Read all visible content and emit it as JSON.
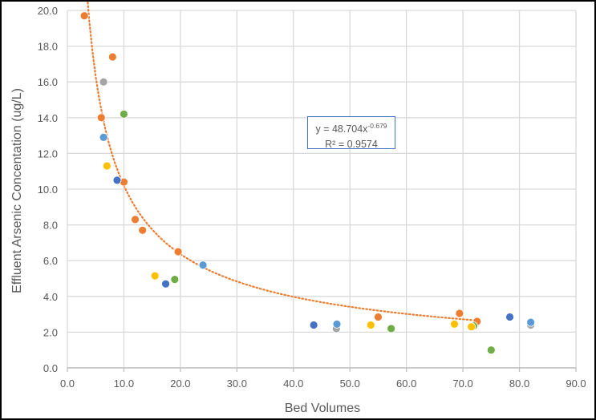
{
  "chart_data": {
    "type": "scatter",
    "title": "",
    "xlabel": "Bed Volumes",
    "ylabel": "Effluent Arsenic Concentation (ug/L)",
    "xlim": [
      0,
      90
    ],
    "ylim": [
      0,
      20
    ],
    "x_ticks": [
      "0.0",
      "10.0",
      "20.0",
      "30.0",
      "40.0",
      "50.0",
      "60.0",
      "70.0",
      "80.0",
      "90.0"
    ],
    "y_ticks": [
      "0.0",
      "2.0",
      "4.0",
      "6.0",
      "8.0",
      "10.0",
      "12.0",
      "14.0",
      "16.0",
      "18.0",
      "20.0"
    ],
    "grid": true,
    "legend": "none",
    "series": [
      {
        "color": "#ed7d31",
        "points": [
          [
            3.0,
            19.7
          ],
          [
            8.0,
            17.4
          ],
          [
            6.0,
            14.0
          ],
          [
            10.0,
            10.4
          ],
          [
            12.0,
            8.3
          ],
          [
            13.3,
            7.7
          ],
          [
            19.6,
            6.5
          ],
          [
            55.0,
            2.85
          ],
          [
            69.4,
            3.05
          ],
          [
            72.5,
            2.6
          ]
        ]
      },
      {
        "color": "#a5a5a5",
        "points": [
          [
            6.4,
            16.0
          ],
          [
            47.6,
            2.2
          ],
          [
            82.0,
            2.4
          ]
        ]
      },
      {
        "color": "#70ad47",
        "points": [
          [
            10.0,
            14.2
          ],
          [
            19.0,
            4.95
          ],
          [
            57.3,
            2.2
          ],
          [
            75.0,
            1.0
          ],
          [
            71.9,
            2.35
          ]
        ]
      },
      {
        "color": "#5b9bd5",
        "points": [
          [
            6.4,
            12.9
          ],
          [
            24.0,
            5.75
          ],
          [
            47.7,
            2.45
          ],
          [
            82.0,
            2.55
          ]
        ]
      },
      {
        "color": "#ffc000",
        "points": [
          [
            7.0,
            11.3
          ],
          [
            15.5,
            5.15
          ],
          [
            53.7,
            2.4
          ],
          [
            68.5,
            2.45
          ],
          [
            71.5,
            2.3
          ]
        ]
      },
      {
        "color": "#4472c4",
        "points": [
          [
            8.8,
            10.5
          ],
          [
            17.4,
            4.7
          ],
          [
            43.6,
            2.4
          ],
          [
            78.3,
            2.85
          ]
        ]
      }
    ],
    "trendline": {
      "type": "power",
      "coefficient": 48.704,
      "exponent": -0.679,
      "x_range": [
        3.3,
        72.5
      ],
      "color": "#ed7d31",
      "style": "dotted",
      "equation_label": {
        "prefix": "y = 48.704x",
        "exponent": "-0.679"
      },
      "r2_label": "R² = 0.9574"
    }
  }
}
